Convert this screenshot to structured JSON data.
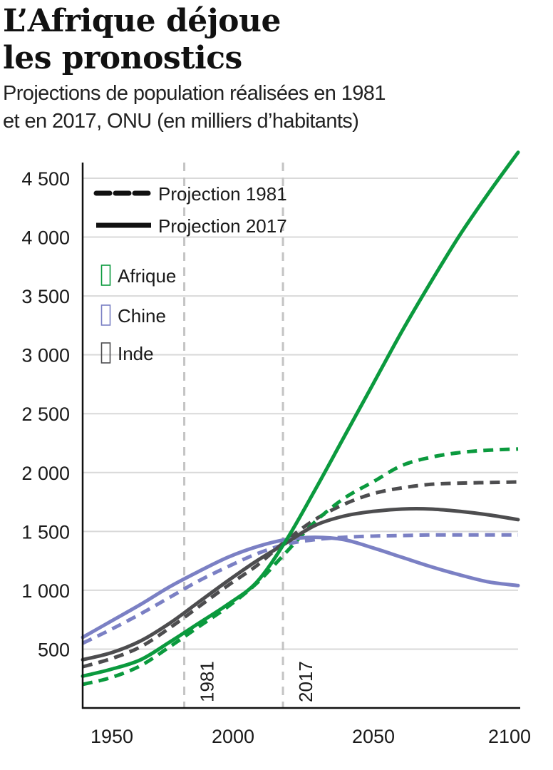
{
  "header": {
    "title_line1": "L’Afrique déjoue",
    "title_line2": "les pronostics",
    "subtitle_line1": "Projections de population réalisées en 1981",
    "subtitle_line2": "et en 2017, ONU (en milliers d’habitants)"
  },
  "colors": {
    "afrique": "#0b9a3e",
    "chine": "#7b80c4",
    "inde": "#4d4d4f",
    "grid": "#d9d9d9",
    "reference_line": "#c4c4c4",
    "axis": "#111111"
  },
  "chart_data": {
    "type": "line",
    "title": "L’Afrique déjoue les pronostics",
    "subtitle": "Projections de population réalisées en 1981 et en 2017, ONU (en milliers d’habitants)",
    "xlabel": "",
    "ylabel": "",
    "xlim": [
      1950,
      2100
    ],
    "ylim": [
      0,
      4500
    ],
    "x_ticks": [
      1950,
      2000,
      2050,
      2100
    ],
    "x_tick_labels": [
      "1950",
      "2000",
      "2050",
      "2100"
    ],
    "y_ticks": [
      500,
      1000,
      1500,
      2000,
      2500,
      3000,
      3500,
      4000,
      4500
    ],
    "y_tick_labels": [
      "500",
      "1 000",
      "1 500",
      "2 000",
      "2 500",
      "3 000",
      "3 500",
      "4 000",
      "4 500"
    ],
    "grid": "horizontal",
    "reference_lines": [
      {
        "x": 1985,
        "label": "1981"
      },
      {
        "x": 2019,
        "label": "2017"
      }
    ],
    "legend": {
      "placement": "top-left",
      "styles": [
        {
          "label": "Projection 1981",
          "dash": "dashed"
        },
        {
          "label": "Projection 2017",
          "dash": "solid"
        }
      ],
      "regions": [
        {
          "label": "Afrique",
          "color_key": "afrique"
        },
        {
          "label": "Chine",
          "color_key": "chine"
        },
        {
          "label": "Inde",
          "color_key": "inde"
        }
      ]
    },
    "series": [
      {
        "name": "Afrique – Projection 2017",
        "region": "afrique",
        "style": "solid",
        "x": [
          1950,
          1960,
          1970,
          1980,
          1990,
          2000,
          2010,
          2020,
          2030,
          2040,
          2050,
          2060,
          2070,
          2080,
          2090,
          2100
        ],
        "y": [
          270,
          330,
          410,
          560,
          720,
          880,
          1070,
          1420,
          1850,
          2300,
          2750,
          3200,
          3620,
          4020,
          4380,
          4720
        ]
      },
      {
        "name": "Afrique – Projection 1981",
        "region": "afrique",
        "style": "dashed",
        "x": [
          1950,
          1960,
          1970,
          1980,
          1990,
          2000,
          2010,
          2020,
          2030,
          2040,
          2050,
          2060,
          2070,
          2080,
          2090,
          2100
        ],
        "y": [
          200,
          260,
          360,
          520,
          690,
          860,
          1060,
          1320,
          1580,
          1780,
          1920,
          2060,
          2130,
          2170,
          2190,
          2200
        ]
      },
      {
        "name": "Chine – Projection 2017",
        "region": "chine",
        "style": "solid",
        "x": [
          1950,
          1960,
          1970,
          1980,
          1990,
          2000,
          2010,
          2020,
          2030,
          2040,
          2050,
          2060,
          2070,
          2080,
          2090,
          2100
        ],
        "y": [
          600,
          740,
          880,
          1030,
          1160,
          1280,
          1370,
          1430,
          1450,
          1430,
          1360,
          1280,
          1200,
          1130,
          1070,
          1040
        ]
      },
      {
        "name": "Chine – Projection 1981",
        "region": "chine",
        "style": "dashed",
        "x": [
          1950,
          1960,
          1970,
          1980,
          1990,
          2000,
          2010,
          2020,
          2030,
          2040,
          2050,
          2060,
          2070,
          2080,
          2090,
          2100
        ],
        "y": [
          550,
          670,
          800,
          940,
          1080,
          1200,
          1310,
          1390,
          1430,
          1450,
          1460,
          1465,
          1470,
          1470,
          1470,
          1470
        ]
      },
      {
        "name": "Inde – Projection 2017",
        "region": "inde",
        "style": "solid",
        "x": [
          1950,
          1960,
          1970,
          1980,
          1990,
          2000,
          2010,
          2020,
          2030,
          2040,
          2050,
          2060,
          2070,
          2080,
          2090,
          2100
        ],
        "y": [
          410,
          470,
          570,
          720,
          900,
          1080,
          1250,
          1400,
          1550,
          1630,
          1670,
          1690,
          1690,
          1670,
          1640,
          1600
        ]
      },
      {
        "name": "Inde – Projection 1981",
        "region": "inde",
        "style": "dashed",
        "x": [
          1950,
          1960,
          1970,
          1980,
          1990,
          2000,
          2010,
          2020,
          2030,
          2040,
          2050,
          2060,
          2070,
          2080,
          2090,
          2100
        ],
        "y": [
          350,
          420,
          520,
          680,
          860,
          1040,
          1210,
          1420,
          1600,
          1730,
          1820,
          1870,
          1900,
          1910,
          1915,
          1920
        ]
      }
    ]
  }
}
